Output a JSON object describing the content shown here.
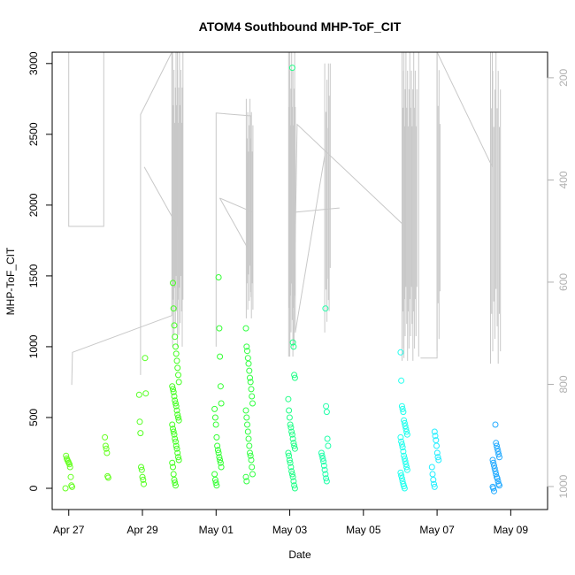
{
  "chart_data": {
    "type": "scatter",
    "title": "ATOM4 Southbound MHP-ToF_CIT",
    "xlabel": "Date",
    "ylabel": "MHP-ToF_CIT",
    "x_tick_labels": [
      "Apr 27",
      "Apr 29",
      "May 01",
      "May 03",
      "May 05",
      "May 07",
      "May 09"
    ],
    "x_ticks_day": [
      0,
      2,
      4,
      6,
      8,
      10,
      12
    ],
    "xlim_day": [
      -0.45,
      13.0
    ],
    "ylim": [
      -150,
      3080
    ],
    "y_ticks": [
      0,
      500,
      1000,
      1500,
      2000,
      2500,
      3000
    ],
    "y_tick_labels": [
      "0",
      "500",
      "1000",
      "1500",
      "2000",
      "2500",
      "3000"
    ],
    "secondary_axis": {
      "side": "right",
      "reversed": true,
      "ticks": [
        200,
        400,
        600,
        800,
        1000
      ],
      "tick_labels": [
        "200",
        "400",
        "600",
        "800",
        "1000"
      ],
      "lim": [
        1045,
        150
      ],
      "color": "#b0b0b0"
    },
    "grid": false,
    "colors": {
      "series_line": "#c8c8c8",
      "frame": "#000000",
      "sec_axis": "#b0b0b0"
    },
    "scatter_clusters": [
      {
        "day": 0.0,
        "color": "#66ff22",
        "values": [
          0,
          10,
          20,
          80,
          150,
          170,
          180,
          190,
          200,
          210,
          230
        ]
      },
      {
        "day": 1.0,
        "color": "#66ff22",
        "values": [
          75,
          85,
          250,
          280,
          300,
          360
        ]
      },
      {
        "day": 2.0,
        "color": "#55ff22",
        "values": [
          30,
          60,
          80,
          130,
          150,
          390,
          470,
          660,
          670,
          920
        ]
      },
      {
        "day": 2.9,
        "color": "#44ff22",
        "values": [
          20,
          40,
          60,
          100,
          150,
          180,
          200,
          220,
          250,
          280,
          300,
          330,
          350,
          380,
          400,
          420,
          450,
          480,
          500,
          520,
          550,
          580,
          600,
          620,
          650,
          680,
          700,
          720,
          750,
          800,
          850,
          900,
          950,
          1000,
          1070,
          1150,
          1270,
          1450
        ]
      },
      {
        "day": 4.05,
        "color": "#33ff33",
        "values": [
          20,
          40,
          60,
          100,
          150,
          180,
          200,
          220,
          250,
          270,
          300,
          360,
          450,
          500,
          560,
          600,
          720,
          930,
          1130,
          1490
        ]
      },
      {
        "day": 4.9,
        "color": "#33ff44",
        "values": [
          50,
          80,
          100,
          150,
          200,
          230,
          250,
          300,
          350,
          400,
          450,
          500,
          550,
          600,
          650,
          700,
          750,
          780,
          830,
          880,
          920,
          970,
          1000,
          1130
        ]
      },
      {
        "day": 6.05,
        "color": "#22ff88",
        "values": [
          0,
          20,
          50,
          80,
          100,
          120,
          150,
          180,
          200,
          230,
          250,
          280,
          300,
          320,
          350,
          380,
          400,
          430,
          450,
          500,
          550,
          630,
          780,
          800,
          1000,
          1030,
          2970
        ]
      },
      {
        "day": 6.95,
        "color": "#22ffaa",
        "values": [
          50,
          70,
          100,
          130,
          160,
          190,
          210,
          230,
          250,
          300,
          350,
          540,
          580,
          1270
        ]
      },
      {
        "day": 9.1,
        "color": "#22ffee",
        "values": [
          0,
          15,
          30,
          50,
          70,
          90,
          110,
          130,
          150,
          170,
          190,
          210,
          230,
          260,
          290,
          310,
          330,
          360,
          380,
          400,
          420,
          440,
          460,
          480,
          540,
          560,
          580,
          760,
          960
        ]
      },
      {
        "day": 9.95,
        "color": "#22eeff",
        "values": [
          10,
          30,
          60,
          100,
          150,
          200,
          220,
          250,
          300,
          340,
          370,
          400
        ]
      },
      {
        "day": 11.6,
        "color": "#22aaff",
        "values": [
          -20,
          0,
          10,
          20,
          30,
          50,
          70,
          80,
          100,
          120,
          140,
          160,
          180,
          200,
          220,
          240,
          260,
          280,
          300,
          320,
          450
        ]
      }
    ],
    "line_segments": [
      [
        [
          0.0,
          3080
        ],
        [
          0.0,
          1850
        ],
        [
          0.95,
          1850
        ],
        [
          0.95,
          3080
        ]
      ],
      [
        [
          0.08,
          730
        ],
        [
          0.1,
          960
        ],
        [
          2.8,
          1220
        ],
        [
          2.8,
          3080
        ]
      ],
      [
        [
          1.95,
          800
        ],
        [
          1.95,
          2640
        ],
        [
          2.8,
          3080
        ]
      ],
      [
        [
          2.05,
          2270
        ],
        [
          2.95,
          1850
        ],
        [
          2.95,
          3080
        ]
      ],
      [
        [
          4.0,
          1000
        ],
        [
          4.0,
          2650
        ],
        [
          4.95,
          2630
        ],
        [
          4.95,
          1350
        ]
      ],
      [
        [
          4.1,
          2050
        ],
        [
          5.0,
          1950
        ]
      ],
      [
        [
          4.1,
          2050
        ],
        [
          4.85,
          1700
        ],
        [
          4.85,
          2300
        ]
      ],
      [
        [
          6.0,
          930
        ],
        [
          6.0,
          3080
        ]
      ],
      [
        [
          6.1,
          1000
        ],
        [
          6.2,
          2570
        ],
        [
          9.05,
          1870
        ]
      ],
      [
        [
          6.15,
          1950
        ],
        [
          7.35,
          1980
        ]
      ],
      [
        [
          6.15,
          1100
        ],
        [
          6.95,
          2350
        ]
      ],
      [
        [
          7.05,
          1330
        ],
        [
          7.05,
          3000
        ]
      ],
      [
        [
          9.1,
          920
        ],
        [
          9.1,
          3080
        ]
      ],
      [
        [
          9.5,
          930
        ],
        [
          9.5,
          3080
        ]
      ],
      [
        [
          9.55,
          920
        ],
        [
          10.0,
          920
        ],
        [
          10.0,
          3080
        ]
      ],
      [
        [
          10.0,
          3080
        ],
        [
          11.5,
          2270
        ],
        [
          11.5,
          3080
        ]
      ]
    ],
    "spike_bundles": [
      {
        "x_start": 2.82,
        "x_end": 3.1,
        "count": 16,
        "low": 1000,
        "high": 3080
      },
      {
        "x_start": 4.82,
        "x_end": 5.0,
        "count": 10,
        "low": 1200,
        "high": 2750
      },
      {
        "x_start": 5.97,
        "x_end": 6.15,
        "count": 12,
        "low": 930,
        "high": 3080
      },
      {
        "x_start": 6.95,
        "x_end": 7.1,
        "count": 6,
        "low": 1100,
        "high": 3000
      },
      {
        "x_start": 9.05,
        "x_end": 9.45,
        "count": 20,
        "low": 900,
        "high": 3080
      },
      {
        "x_start": 10.0,
        "x_end": 10.08,
        "count": 4,
        "low": 970,
        "high": 3080
      },
      {
        "x_start": 11.45,
        "x_end": 11.72,
        "count": 10,
        "low": 880,
        "high": 3080
      }
    ]
  }
}
